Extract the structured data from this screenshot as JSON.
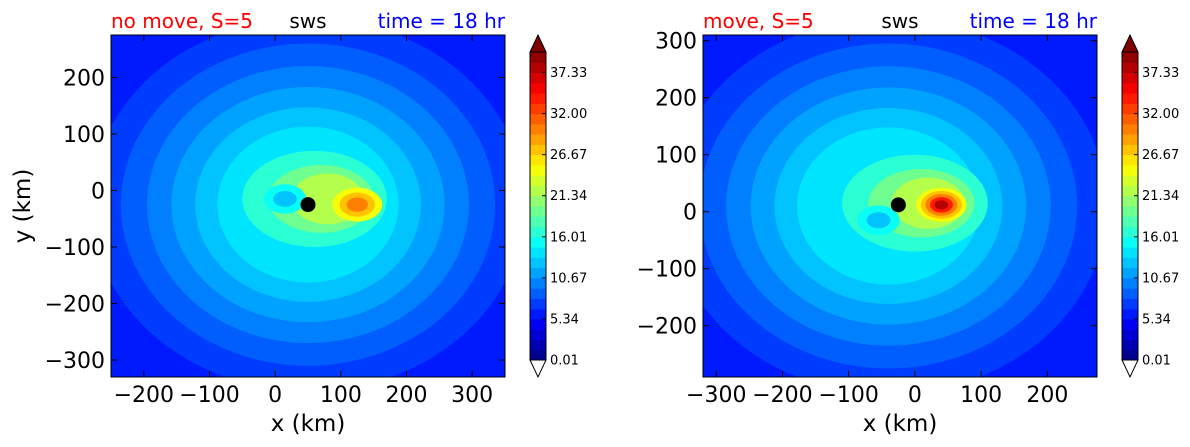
{
  "chart_data": [
    {
      "type": "contour",
      "title_left": "no move, S=5",
      "title_center": "sws",
      "title_right": "time = 18 hr",
      "title_colors": {
        "left": "#ff0000",
        "center": "#000000",
        "right": "#0000ff"
      },
      "xlabel": "x (km)",
      "ylabel": "y (km)",
      "xlim": [
        -250,
        350
      ],
      "ylim": [
        -330,
        275
      ],
      "xticks": [
        -200,
        -100,
        0,
        100,
        200,
        300
      ],
      "xtick_labels": [
        "−200",
        "−100",
        "0",
        "100",
        "200",
        "300"
      ],
      "yticks": [
        200,
        100,
        0,
        -100,
        -200,
        -300
      ],
      "ytick_labels": [
        "200",
        "100",
        "0",
        "−100",
        "−200",
        "−300"
      ],
      "center_marker": {
        "x": 50,
        "y": -25
      },
      "field": {
        "background_level": 8,
        "rings_center": {
          "x": 50,
          "y": -25
        },
        "core": {
          "x": 60,
          "y": -15
        },
        "hotspot": {
          "x": 125,
          "y": -25,
          "value": 23
        },
        "eye": {
          "x": 15,
          "y": -15
        }
      },
      "colorbar": {
        "min": 0.01,
        "max": 40,
        "tick_values": [
          37.33,
          32.0,
          26.67,
          21.34,
          16.01,
          10.67,
          5.34,
          0.01
        ],
        "tick_labels": [
          "37.33",
          "32.00",
          "26.67",
          "21.34",
          "16.01",
          "10.67",
          "5.34",
          "0.01"
        ],
        "extend": "both",
        "colormap": "jet"
      }
    },
    {
      "type": "contour",
      "title_left": "move, S=5",
      "title_center": "sws",
      "title_right": "time = 18 hr",
      "title_colors": {
        "left": "#ff0000",
        "center": "#000000",
        "right": "#0000ff"
      },
      "xlabel": "x (km)",
      "ylabel": "",
      "xlim": [
        -320,
        275
      ],
      "ylim": [
        -290,
        310
      ],
      "xticks": [
        -300,
        -200,
        -100,
        0,
        100,
        200
      ],
      "xtick_labels": [
        "−300",
        "−200",
        "−100",
        "0",
        "100",
        "200"
      ],
      "yticks": [
        300,
        200,
        100,
        0,
        -100,
        -200
      ],
      "ytick_labels": [
        "300",
        "200",
        "100",
        "0",
        "−100",
        "−200"
      ],
      "center_marker": {
        "x": -25,
        "y": 12
      },
      "field": {
        "background_level": 8,
        "rings_center": {
          "x": -40,
          "y": 10
        },
        "core": {
          "x": 0,
          "y": 15
        },
        "hotspot": {
          "x": 40,
          "y": 12,
          "value": 30
        },
        "eye": {
          "x": -55,
          "y": -15
        }
      },
      "colorbar": {
        "min": 0.01,
        "max": 40,
        "tick_values": [
          37.33,
          32.0,
          26.67,
          21.34,
          16.01,
          10.67,
          5.34,
          0.01
        ],
        "tick_labels": [
          "37.33",
          "32.00",
          "26.67",
          "21.34",
          "16.01",
          "10.67",
          "5.34",
          "0.01"
        ],
        "extend": "both",
        "colormap": "jet"
      }
    }
  ]
}
